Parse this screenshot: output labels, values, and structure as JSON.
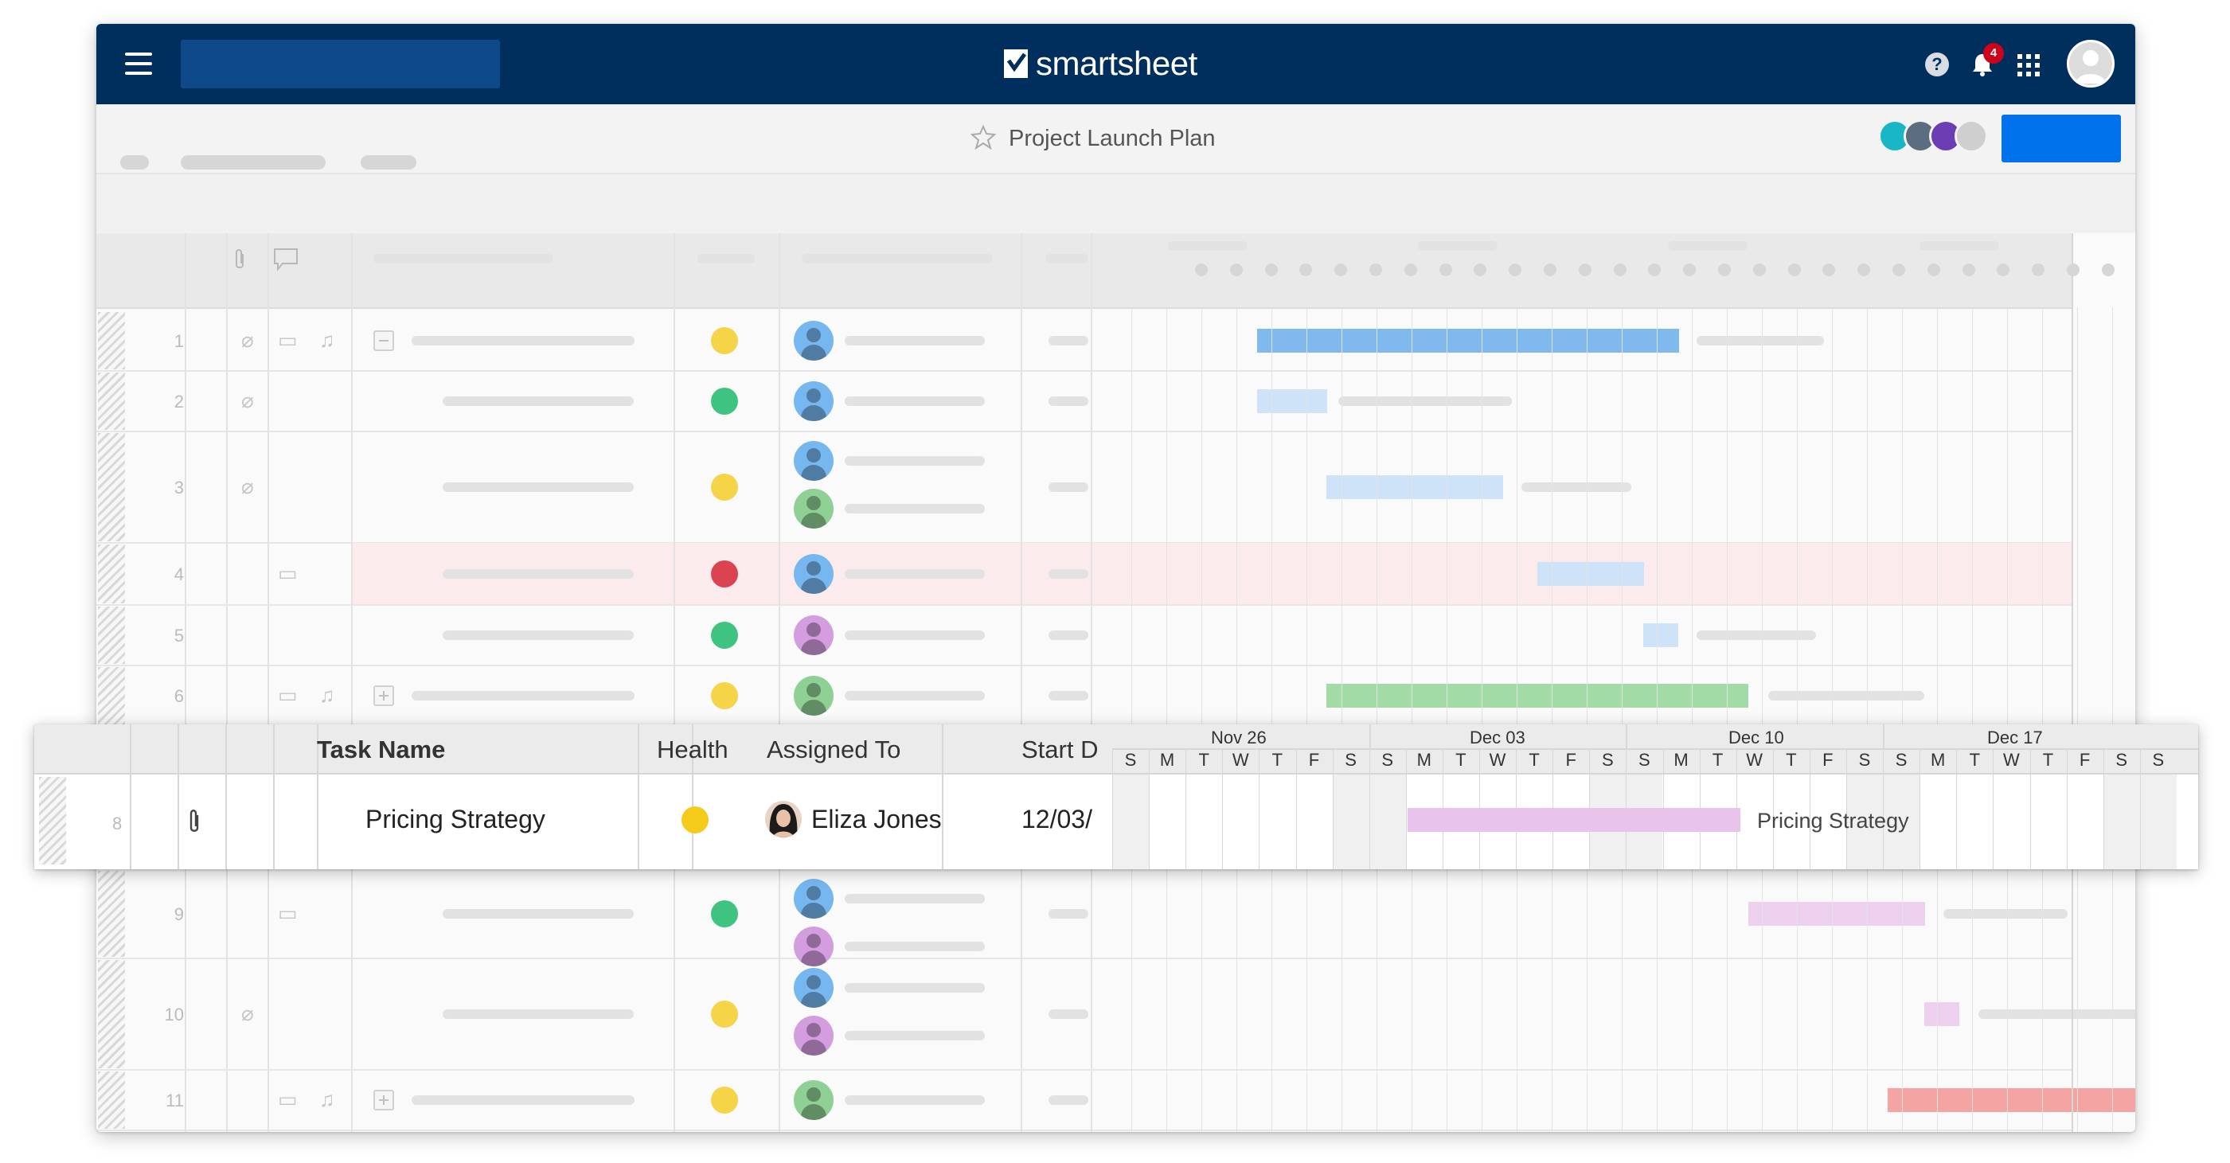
{
  "app": {
    "logo_text": "smartsheet",
    "sheet_title": "Project Launch Plan",
    "notification_count": "4"
  },
  "icons": [
    "menu-icon",
    "smartsheet-logo-icon",
    "star-icon",
    "help-icon",
    "bell-icon",
    "apps-grid-icon",
    "user-avatar-icon",
    "paperclip-icon",
    "comment-icon",
    "reminder-icon",
    "collapse-icon",
    "expand-icon"
  ],
  "colors": {
    "topbar": "#002e5d",
    "accent_button": "#0073ec",
    "health_yellow": "#f5d547",
    "health_green": "#3fc380",
    "health_red": "#dc4350"
  },
  "rows": [
    {
      "num": "1",
      "health": "yellow"
    },
    {
      "num": "2",
      "health": "green"
    },
    {
      "num": "3",
      "health": "yellow"
    },
    {
      "num": "4",
      "health": "red"
    },
    {
      "num": "5",
      "health": "green"
    },
    {
      "num": "6",
      "health": "yellow"
    },
    {
      "num": "9",
      "health": "green"
    },
    {
      "num": "10",
      "health": "yellow"
    },
    {
      "num": "11",
      "health": "yellow"
    }
  ],
  "popout": {
    "columns": {
      "task_name": "Task Name",
      "health": "Health",
      "assigned_to": "Assigned To",
      "start_date": "Start D"
    },
    "row": {
      "num": "8",
      "task_name": "Pricing Strategy",
      "health": "yellow",
      "assigned_to": "Eliza Jones",
      "start_date": "12/03/",
      "bar_label": "Pricing Strategy"
    },
    "weeks": [
      "Nov 26",
      "Dec 03",
      "Dec 10",
      "Dec 17"
    ],
    "day_letters": [
      "S",
      "M",
      "T",
      "W",
      "T",
      "F",
      "S",
      "S",
      "M",
      "T",
      "W",
      "T",
      "F",
      "S",
      "S",
      "M",
      "T",
      "W",
      "T",
      "F",
      "S",
      "S",
      "M",
      "T",
      "W",
      "T",
      "F",
      "S",
      "S"
    ]
  }
}
